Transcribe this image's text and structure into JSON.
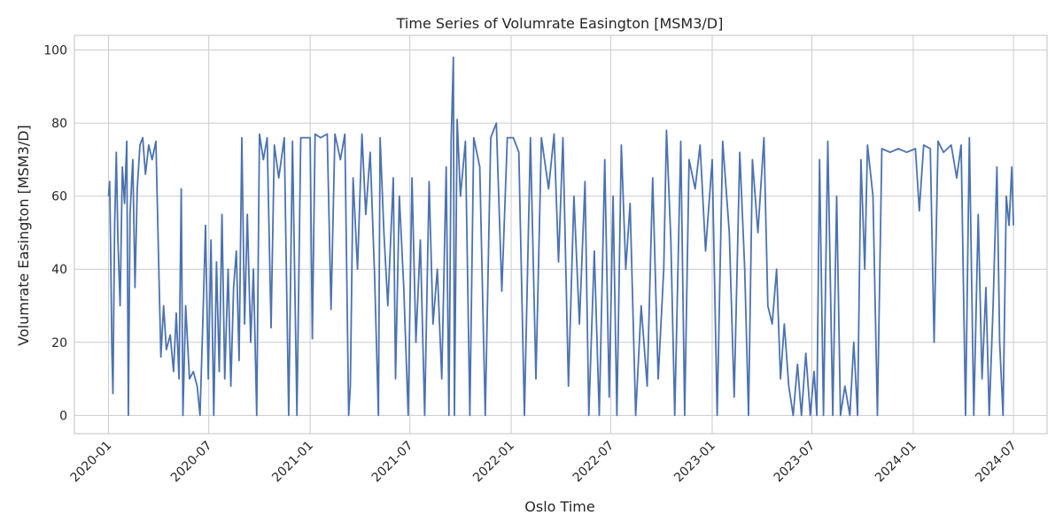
{
  "chart_data": {
    "type": "line",
    "title": "Time Series of Volumrate Easington [MSM3/D]",
    "xlabel": "Oslo Time",
    "ylabel": "Volumrate Easington [MSM3/D]",
    "x_range": [
      "2019-10-31",
      "2024-08-31"
    ],
    "ylim": [
      -5,
      104
    ],
    "grid": true,
    "x_tick_labels": [
      "2020-01",
      "2020-07",
      "2021-01",
      "2021-07",
      "2022-01",
      "2022-07",
      "2023-01",
      "2023-07",
      "2024-01",
      "2024-07"
    ],
    "y_ticks": [
      0,
      20,
      40,
      60,
      80,
      100
    ],
    "series": [
      {
        "color": "#4c72b0",
        "points": [
          [
            "2020-01-01",
            60
          ],
          [
            "2020-01-03",
            64
          ],
          [
            "2020-01-05",
            44
          ],
          [
            "2020-01-07",
            18
          ],
          [
            "2020-01-09",
            6
          ],
          [
            "2020-01-12",
            52
          ],
          [
            "2020-01-15",
            72
          ],
          [
            "2020-01-18",
            48
          ],
          [
            "2020-01-22",
            30
          ],
          [
            "2020-01-26",
            68
          ],
          [
            "2020-01-30",
            58
          ],
          [
            "2020-02-03",
            75
          ],
          [
            "2020-02-06",
            0
          ],
          [
            "2020-02-09",
            55
          ],
          [
            "2020-02-14",
            70
          ],
          [
            "2020-02-18",
            35
          ],
          [
            "2020-02-22",
            62
          ],
          [
            "2020-02-27",
            74
          ],
          [
            "2020-03-03",
            76
          ],
          [
            "2020-03-08",
            66
          ],
          [
            "2020-03-14",
            74
          ],
          [
            "2020-03-20",
            70
          ],
          [
            "2020-03-27",
            75
          ],
          [
            "2020-04-01",
            42
          ],
          [
            "2020-04-05",
            16
          ],
          [
            "2020-04-10",
            30
          ],
          [
            "2020-04-15",
            18
          ],
          [
            "2020-04-22",
            22
          ],
          [
            "2020-04-28",
            12
          ],
          [
            "2020-05-03",
            28
          ],
          [
            "2020-05-08",
            10
          ],
          [
            "2020-05-12",
            62
          ],
          [
            "2020-05-15",
            0
          ],
          [
            "2020-05-20",
            30
          ],
          [
            "2020-05-27",
            10
          ],
          [
            "2020-06-03",
            12
          ],
          [
            "2020-06-10",
            8
          ],
          [
            "2020-06-15",
            0
          ],
          [
            "2020-06-20",
            25
          ],
          [
            "2020-06-25",
            52
          ],
          [
            "2020-06-30",
            10
          ],
          [
            "2020-07-05",
            48
          ],
          [
            "2020-07-10",
            0
          ],
          [
            "2020-07-15",
            42
          ],
          [
            "2020-07-20",
            12
          ],
          [
            "2020-07-25",
            55
          ],
          [
            "2020-07-30",
            10
          ],
          [
            "2020-08-05",
            40
          ],
          [
            "2020-08-10",
            8
          ],
          [
            "2020-08-15",
            35
          ],
          [
            "2020-08-20",
            45
          ],
          [
            "2020-08-25",
            15
          ],
          [
            "2020-08-30",
            76
          ],
          [
            "2020-09-04",
            25
          ],
          [
            "2020-09-09",
            55
          ],
          [
            "2020-09-15",
            20
          ],
          [
            "2020-09-20",
            40
          ],
          [
            "2020-09-26",
            0
          ],
          [
            "2020-10-01",
            77
          ],
          [
            "2020-10-08",
            70
          ],
          [
            "2020-10-15",
            76
          ],
          [
            "2020-10-22",
            24
          ],
          [
            "2020-10-28",
            74
          ],
          [
            "2020-11-05",
            65
          ],
          [
            "2020-11-15",
            76
          ],
          [
            "2020-11-23",
            0
          ],
          [
            "2020-11-30",
            75
          ],
          [
            "2020-12-08",
            0
          ],
          [
            "2020-12-15",
            76
          ],
          [
            "2021-01-01",
            76
          ],
          [
            "2021-01-05",
            21
          ],
          [
            "2021-01-10",
            77
          ],
          [
            "2021-01-20",
            76
          ],
          [
            "2021-02-01",
            77
          ],
          [
            "2021-02-08",
            29
          ],
          [
            "2021-02-15",
            77
          ],
          [
            "2021-02-25",
            70
          ],
          [
            "2021-03-05",
            77
          ],
          [
            "2021-03-12",
            0
          ],
          [
            "2021-03-15",
            8
          ],
          [
            "2021-03-20",
            65
          ],
          [
            "2021-03-28",
            40
          ],
          [
            "2021-04-05",
            77
          ],
          [
            "2021-04-12",
            55
          ],
          [
            "2021-04-20",
            72
          ],
          [
            "2021-04-28",
            38
          ],
          [
            "2021-05-05",
            0
          ],
          [
            "2021-05-08",
            76
          ],
          [
            "2021-05-15",
            50
          ],
          [
            "2021-05-22",
            30
          ],
          [
            "2021-06-01",
            65
          ],
          [
            "2021-06-05",
            10
          ],
          [
            "2021-06-12",
            60
          ],
          [
            "2021-06-20",
            35
          ],
          [
            "2021-06-28",
            0
          ],
          [
            "2021-07-05",
            65
          ],
          [
            "2021-07-12",
            20
          ],
          [
            "2021-07-20",
            48
          ],
          [
            "2021-07-28",
            0
          ],
          [
            "2021-08-05",
            64
          ],
          [
            "2021-08-12",
            25
          ],
          [
            "2021-08-20",
            40
          ],
          [
            "2021-08-28",
            10
          ],
          [
            "2021-09-05",
            68
          ],
          [
            "2021-09-10",
            0
          ],
          [
            "2021-09-14",
            75
          ],
          [
            "2021-09-18",
            98
          ],
          [
            "2021-09-20",
            0
          ],
          [
            "2021-09-25",
            81
          ],
          [
            "2021-10-01",
            60
          ],
          [
            "2021-10-10",
            75
          ],
          [
            "2021-10-18",
            0
          ],
          [
            "2021-10-25",
            76
          ],
          [
            "2021-11-05",
            68
          ],
          [
            "2021-11-15",
            0
          ],
          [
            "2021-11-25",
            76
          ],
          [
            "2021-12-05",
            80
          ],
          [
            "2021-12-15",
            34
          ],
          [
            "2021-12-25",
            76
          ],
          [
            "2022-01-05",
            76
          ],
          [
            "2022-01-15",
            72
          ],
          [
            "2022-01-25",
            0
          ],
          [
            "2022-02-05",
            76
          ],
          [
            "2022-02-15",
            10
          ],
          [
            "2022-02-25",
            76
          ],
          [
            "2022-03-10",
            62
          ],
          [
            "2022-03-20",
            77
          ],
          [
            "2022-03-28",
            42
          ],
          [
            "2022-04-05",
            76
          ],
          [
            "2022-04-15",
            8
          ],
          [
            "2022-04-25",
            60
          ],
          [
            "2022-05-05",
            25
          ],
          [
            "2022-05-15",
            64
          ],
          [
            "2022-05-22",
            0
          ],
          [
            "2022-06-01",
            45
          ],
          [
            "2022-06-10",
            0
          ],
          [
            "2022-06-20",
            70
          ],
          [
            "2022-06-28",
            5
          ],
          [
            "2022-07-05",
            60
          ],
          [
            "2022-07-12",
            0
          ],
          [
            "2022-07-20",
            74
          ],
          [
            "2022-07-28",
            40
          ],
          [
            "2022-08-05",
            58
          ],
          [
            "2022-08-15",
            0
          ],
          [
            "2022-08-25",
            30
          ],
          [
            "2022-09-05",
            8
          ],
          [
            "2022-09-15",
            65
          ],
          [
            "2022-09-25",
            10
          ],
          [
            "2022-10-05",
            40
          ],
          [
            "2022-10-10",
            78
          ],
          [
            "2022-10-18",
            48
          ],
          [
            "2022-10-25",
            0
          ],
          [
            "2022-11-05",
            75
          ],
          [
            "2022-11-12",
            0
          ],
          [
            "2022-11-20",
            70
          ],
          [
            "2022-12-01",
            62
          ],
          [
            "2022-12-10",
            74
          ],
          [
            "2022-12-20",
            45
          ],
          [
            "2023-01-01",
            70
          ],
          [
            "2023-01-10",
            0
          ],
          [
            "2023-01-20",
            75
          ],
          [
            "2023-02-01",
            50
          ],
          [
            "2023-02-10",
            5
          ],
          [
            "2023-02-20",
            72
          ],
          [
            "2023-03-01",
            40
          ],
          [
            "2023-03-08",
            0
          ],
          [
            "2023-03-15",
            70
          ],
          [
            "2023-03-25",
            50
          ],
          [
            "2023-04-05",
            76
          ],
          [
            "2023-04-12",
            30
          ],
          [
            "2023-04-20",
            25
          ],
          [
            "2023-04-28",
            40
          ],
          [
            "2023-05-05",
            10
          ],
          [
            "2023-05-12",
            25
          ],
          [
            "2023-05-20",
            8
          ],
          [
            "2023-05-28",
            0
          ],
          [
            "2023-06-05",
            14
          ],
          [
            "2023-06-12",
            0
          ],
          [
            "2023-06-20",
            17
          ],
          [
            "2023-06-28",
            0
          ],
          [
            "2023-07-05",
            12
          ],
          [
            "2023-07-10",
            0
          ],
          [
            "2023-07-15",
            70
          ],
          [
            "2023-07-22",
            0
          ],
          [
            "2023-07-30",
            75
          ],
          [
            "2023-08-08",
            0
          ],
          [
            "2023-08-15",
            60
          ],
          [
            "2023-08-22",
            0
          ],
          [
            "2023-08-30",
            8
          ],
          [
            "2023-09-08",
            0
          ],
          [
            "2023-09-15",
            20
          ],
          [
            "2023-09-22",
            0
          ],
          [
            "2023-09-28",
            70
          ],
          [
            "2023-10-05",
            40
          ],
          [
            "2023-10-10",
            74
          ],
          [
            "2023-10-20",
            60
          ],
          [
            "2023-10-28",
            0
          ],
          [
            "2023-11-05",
            73
          ],
          [
            "2023-11-20",
            72
          ],
          [
            "2023-12-05",
            73
          ],
          [
            "2023-12-20",
            72
          ],
          [
            "2024-01-05",
            73
          ],
          [
            "2024-01-12",
            56
          ],
          [
            "2024-01-20",
            74
          ],
          [
            "2024-02-01",
            73
          ],
          [
            "2024-02-08",
            20
          ],
          [
            "2024-02-15",
            75
          ],
          [
            "2024-02-25",
            72
          ],
          [
            "2024-03-10",
            74
          ],
          [
            "2024-03-20",
            65
          ],
          [
            "2024-03-28",
            74
          ],
          [
            "2024-04-05",
            0
          ],
          [
            "2024-04-12",
            76
          ],
          [
            "2024-04-20",
            0
          ],
          [
            "2024-04-28",
            55
          ],
          [
            "2024-05-05",
            10
          ],
          [
            "2024-05-12",
            35
          ],
          [
            "2024-05-18",
            0
          ],
          [
            "2024-05-25",
            30
          ],
          [
            "2024-06-01",
            68
          ],
          [
            "2024-06-06",
            20
          ],
          [
            "2024-06-12",
            0
          ],
          [
            "2024-06-18",
            60
          ],
          [
            "2024-06-23",
            52
          ],
          [
            "2024-06-28",
            68
          ],
          [
            "2024-07-01",
            52
          ]
        ]
      }
    ]
  }
}
